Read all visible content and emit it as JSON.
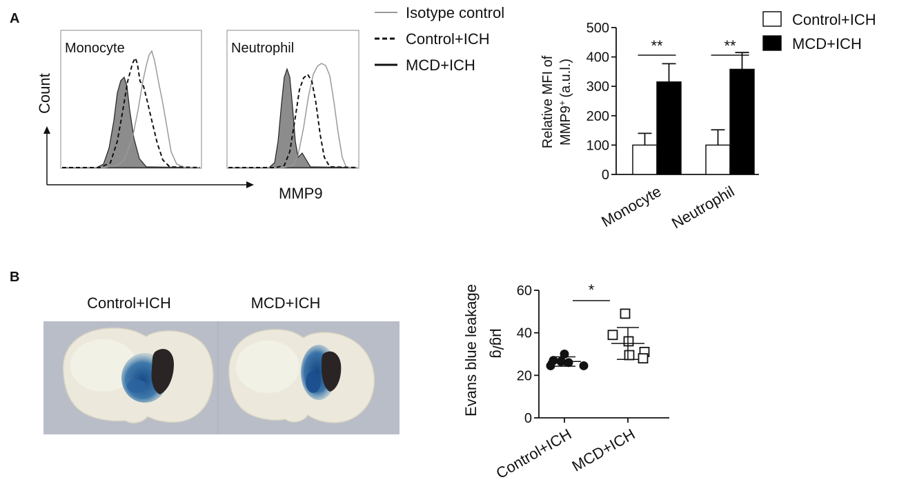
{
  "panel_labels": [
    "A",
    "B"
  ],
  "histogram_panel": {
    "panels": [
      {
        "label": "Monocyte"
      },
      {
        "label": "Neutrophil"
      }
    ],
    "x_axis_label": "MMP9",
    "y_axis_label": "Count",
    "legend": [
      {
        "label": "Isotype control",
        "style": "solid-gray",
        "color": "#999999"
      },
      {
        "label": "Control+ICH",
        "style": "dashed-black",
        "color": "#111111"
      },
      {
        "label": "MCD+ICH",
        "style": "solid-black",
        "color": "#111111"
      }
    ]
  },
  "brain_panel": {
    "labels": [
      "Control+ICH",
      "MCD+ICH"
    ],
    "colors": {
      "tissue": "#ece9dc",
      "background": "#b9bdc7",
      "stain": "#1f4f85",
      "hematoma": "#2a2524"
    }
  },
  "chart_data": [
    {
      "type": "bar",
      "categories": [
        "Monocyte",
        "Neutrophil"
      ],
      "series": [
        {
          "name": "Control+ICH",
          "values": [
            100,
            100
          ],
          "errors": [
            40,
            52
          ],
          "color": "#ffffff"
        },
        {
          "name": "MCD+ICH",
          "values": [
            315,
            358
          ],
          "errors": [
            62,
            57
          ],
          "color": "#000000"
        }
      ],
      "ylabel_line1": "Relative MFI of",
      "ylabel_line2": "MMP9",
      "ylabel_sup": "+",
      "ylabel_unit": "(a.u.l.)",
      "ylim": [
        0,
        500
      ],
      "yticks": [
        0,
        100,
        200,
        300,
        400,
        500
      ],
      "significance": [
        "**",
        "**"
      ],
      "legend_position": "top-right"
    },
    {
      "type": "scatter",
      "categories": [
        "Control+ICH",
        "MCD+ICH"
      ],
      "ylabel": "Evans blue leakage",
      "yunit": "μg/g",
      "ylim": [
        0,
        60
      ],
      "yticks": [
        0,
        20,
        40,
        60
      ],
      "series": [
        {
          "name": "Control+ICH",
          "marker": "filled-circle",
          "values": [
            30,
            27,
            26.5,
            26,
            24.5,
            24.5
          ],
          "mean": 26.5,
          "sd": 2.2
        },
        {
          "name": "MCD+ICH",
          "marker": "open-square",
          "values": [
            49,
            39,
            36,
            31,
            29.5,
            28
          ],
          "mean": 35,
          "sd": 7.5
        }
      ],
      "significance": "*"
    }
  ]
}
